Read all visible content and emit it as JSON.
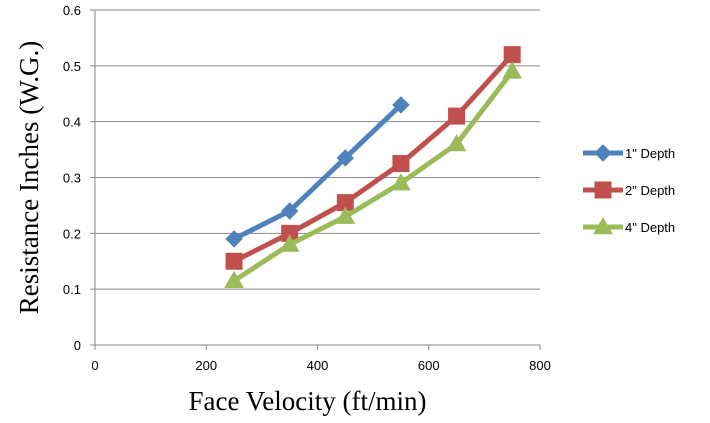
{
  "chart_data": {
    "type": "line",
    "xlabel": "Face Velocity (ft/min)",
    "ylabel": "Resistance Inches (W.G.)",
    "xlim": [
      0,
      800
    ],
    "ylim": [
      0,
      0.6
    ],
    "x_ticks": [
      0,
      200,
      400,
      600,
      800
    ],
    "y_ticks": [
      0,
      0.1,
      0.2,
      0.3,
      0.4,
      0.5,
      0.6
    ],
    "x_tick_labels": [
      "0",
      "200",
      "400",
      "600",
      "800"
    ],
    "y_tick_labels": [
      "0",
      "0.1",
      "0.2",
      "0.3",
      "0.4",
      "0.5",
      "0.6"
    ],
    "grid": "horizontal",
    "legend_position": "right",
    "series": [
      {
        "name": "1\" Depth",
        "color": "#4f81bd",
        "marker": "diamond",
        "x": [
          250,
          350,
          450,
          550
        ],
        "y": [
          0.19,
          0.24,
          0.335,
          0.43
        ]
      },
      {
        "name": "2\" Depth",
        "color": "#c0504d",
        "marker": "square",
        "x": [
          250,
          350,
          450,
          550,
          650,
          750
        ],
        "y": [
          0.15,
          0.2,
          0.255,
          0.325,
          0.41,
          0.52
        ]
      },
      {
        "name": "4\" Depth",
        "color": "#9bbb59",
        "marker": "triangle",
        "x": [
          250,
          350,
          450,
          550,
          650,
          750
        ],
        "y": [
          0.115,
          0.18,
          0.23,
          0.29,
          0.36,
          0.49
        ]
      }
    ]
  }
}
